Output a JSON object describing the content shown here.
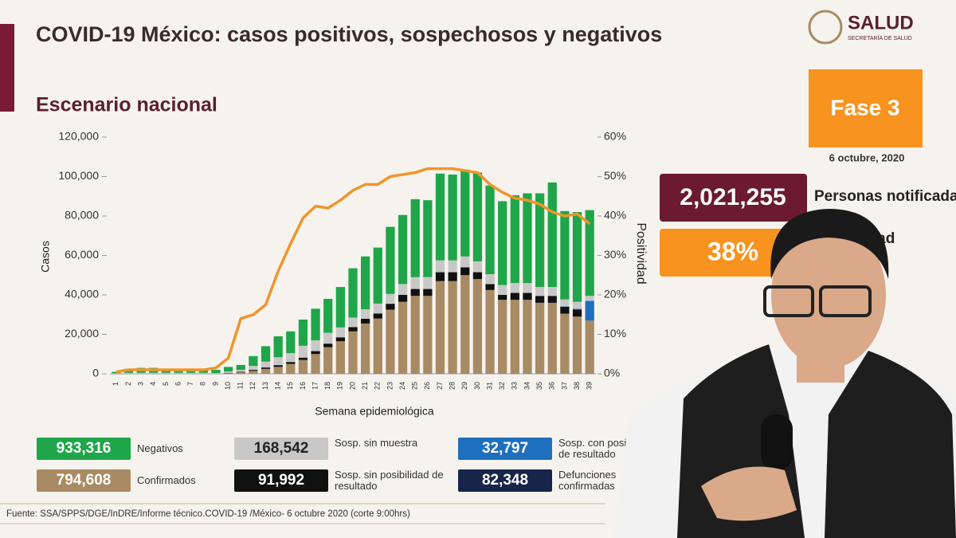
{
  "header": {
    "title": "COVID-19 México: casos positivos, sospechosos y negativos",
    "subtitle": "Escenario nacional",
    "logo": "SALUD",
    "logo_sub": "SECRETARÍA DE SALUD"
  },
  "side": {
    "phase": "Fase 3",
    "date": "6 octubre, 2020",
    "people_value": "2,021,255",
    "people_label": "Personas notificadas",
    "positivity_value": "38%",
    "positivity_label": "Positividad"
  },
  "footer": "Fuente: SSA/SPPS/DGE/InDRE/Informe técnico.COVID-19 /México- 6 octubre 2020 (corte 9:00hrs)",
  "chart_data": {
    "type": "bar",
    "stacked": true,
    "x_label": "Semana epidemiológica",
    "y_label": "Casos",
    "y2_label": "Positividad",
    "categories": [
      "1",
      "2",
      "3",
      "4",
      "5",
      "6",
      "7",
      "8",
      "9",
      "10",
      "11",
      "12",
      "13",
      "14",
      "15",
      "16",
      "17",
      "18",
      "19",
      "20",
      "21",
      "22",
      "23",
      "24",
      "25",
      "26",
      "27",
      "28",
      "29",
      "30",
      "31",
      "32",
      "33",
      "34",
      "35",
      "36",
      "37",
      "38",
      "39"
    ],
    "ylim": [
      0,
      120000
    ],
    "yticks": [
      0,
      {
        "value": 20000,
        "label": "20,000"
      },
      {
        "value": 40000,
        "label": "40,000"
      },
      {
        "value": 60000,
        "label": "60,000"
      },
      {
        "value": 80000,
        "label": "80,000"
      },
      {
        "value": 100000,
        "label": "100,000"
      },
      {
        "value": 120000,
        "label": "120,000"
      }
    ],
    "y2lim": [
      0,
      60
    ],
    "y2ticks": [
      {
        "value": 0,
        "label": "0%"
      },
      {
        "value": 10,
        "label": "10%"
      },
      {
        "value": 20,
        "label": "20%"
      },
      {
        "value": 30,
        "label": "30%"
      },
      {
        "value": 40,
        "label": "40%"
      },
      {
        "value": 50,
        "label": "50%"
      },
      {
        "value": 60,
        "label": "60%"
      }
    ],
    "series": [
      {
        "name": "Confirmados",
        "color": "#a88b64",
        "total": "794,608",
        "values": [
          50,
          100,
          100,
          100,
          100,
          100,
          100,
          100,
          100,
          300,
          700,
          1500,
          2500,
          3500,
          5000,
          7000,
          10000,
          13500,
          16500,
          21500,
          25500,
          28000,
          32500,
          36500,
          39500,
          39500,
          47000,
          47000,
          50000,
          48000,
          42500,
          37500,
          37500,
          37500,
          36000,
          36000,
          30500,
          29000,
          27000
        ]
      },
      {
        "name": "Sosp. sin posibilidad de resultado",
        "color": "#111111",
        "total": "91,992",
        "values": [
          0,
          0,
          0,
          0,
          0,
          0,
          0,
          0,
          0,
          200,
          300,
          500,
          700,
          900,
          1000,
          1200,
          1500,
          1800,
          2000,
          2200,
          2400,
          2600,
          3000,
          3500,
          3500,
          3500,
          4500,
          4500,
          4000,
          3500,
          3000,
          2500,
          3500,
          3500,
          3500,
          3500,
          3500,
          3500,
          0
        ]
      },
      {
        "name": "Sosp. con posibilidad de resultado",
        "color": "#1f6fbf",
        "total": "32,797",
        "values": [
          0,
          0,
          0,
          0,
          0,
          0,
          0,
          0,
          0,
          0,
          0,
          0,
          0,
          0,
          0,
          0,
          0,
          0,
          0,
          0,
          0,
          0,
          0,
          0,
          0,
          0,
          0,
          0,
          0,
          0,
          0,
          0,
          0,
          0,
          0,
          0,
          200,
          500,
          10000
        ]
      },
      {
        "name": "Sosp. sin muestra",
        "color": "#c8c8c8",
        "total": "168,542",
        "values": [
          200,
          400,
          400,
          400,
          400,
          400,
          400,
          400,
          300,
          700,
          1000,
          2000,
          3000,
          4000,
          4500,
          6000,
          5500,
          5500,
          5000,
          4800,
          4800,
          5000,
          5000,
          5500,
          6000,
          6000,
          6000,
          6000,
          5500,
          5500,
          5000,
          5000,
          5000,
          5000,
          4500,
          4500,
          3500,
          3500,
          2500
        ]
      },
      {
        "name": "Negativos",
        "color": "#1fa64a",
        "total": "933,316",
        "values": [
          750,
          2000,
          2500,
          2500,
          2000,
          2000,
          2000,
          2000,
          1600,
          2300,
          2500,
          5000,
          7800,
          10600,
          11000,
          13300,
          16000,
          17200,
          20500,
          25000,
          26800,
          28400,
          34000,
          35000,
          39500,
          39000,
          44000,
          43500,
          44000,
          45000,
          45000,
          42500,
          44500,
          45500,
          47500,
          53000,
          44800,
          45500,
          43500
        ]
      },
      {
        "type": "line",
        "axis": "y2",
        "color": "#f0952a",
        "values": [
          0.5,
          1,
          1,
          1,
          1,
          1,
          1,
          1,
          1.5,
          4,
          14,
          15,
          17.5,
          26,
          33,
          39.5,
          42.5,
          42,
          44,
          46.5,
          48,
          48,
          50,
          50.5,
          51,
          52,
          52,
          52,
          51.5,
          51,
          48,
          46,
          44.5,
          44,
          43,
          41,
          40,
          40.5,
          38
        ]
      }
    ],
    "extra": {
      "name": "Defunciones confirmadas",
      "color": "#17254a",
      "total": "82,348"
    }
  }
}
